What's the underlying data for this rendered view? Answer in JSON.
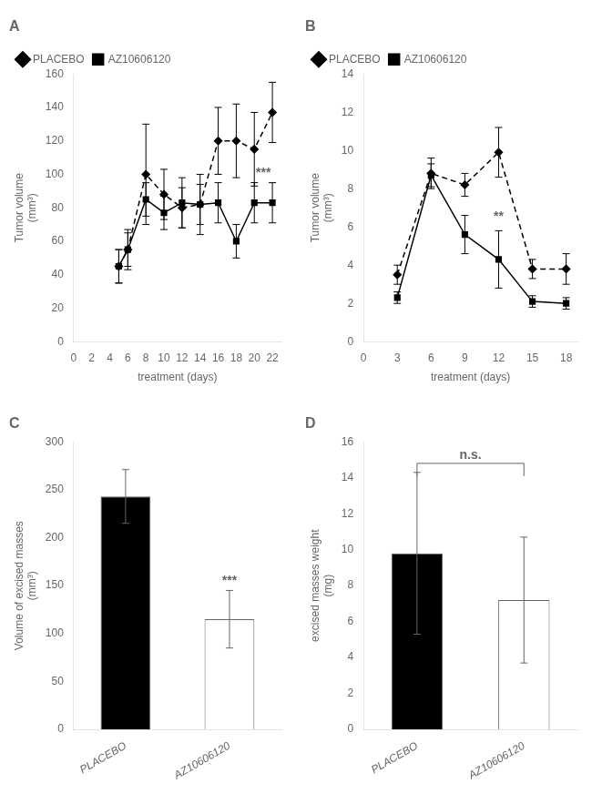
{
  "chart_data": [
    {
      "type": "line",
      "title": "A",
      "xlabel": "treatment (days)",
      "ylabel": "Tumor volume\n(mm³)",
      "x": [
        5,
        6,
        8,
        10,
        12,
        14,
        16,
        18,
        20,
        22
      ],
      "series": [
        {
          "name": "PLACEBO",
          "color": "black",
          "marker": "diamond",
          "line_style": "dashed",
          "values": [
            45,
            55,
            100,
            88,
            80,
            82,
            120,
            120,
            115,
            137
          ],
          "errors": [
            10,
            12,
            30,
            15,
            12,
            18,
            20,
            22,
            22,
            18
          ]
        },
        {
          "name": "AZ10606120",
          "color": "black",
          "marker": "square",
          "line_style": "solid",
          "values": [
            45,
            55,
            85,
            77,
            83,
            82,
            83,
            60,
            83,
            83
          ],
          "errors": [
            10,
            10,
            10,
            10,
            15,
            12,
            12,
            10,
            12,
            12
          ]
        }
      ],
      "xlim": [
        0,
        23
      ],
      "xticks": [
        0,
        2,
        4,
        6,
        8,
        10,
        12,
        14,
        16,
        18,
        20,
        22
      ],
      "ylim": [
        0,
        160
      ],
      "yticks": [
        0,
        20,
        40,
        60,
        80,
        100,
        120,
        140,
        160
      ],
      "legend": "upper left",
      "grid": false,
      "annotations": [
        {
          "text": "***",
          "x": 21,
          "y": 97
        }
      ]
    },
    {
      "type": "line",
      "title": "B",
      "xlabel": "treatment (days)",
      "ylabel": "Tumor volume\n(mm³)",
      "x": [
        3,
        6,
        9,
        12,
        15,
        18
      ],
      "series": [
        {
          "name": "PLACEBO",
          "color": "black",
          "marker": "diamond",
          "line_style": "dashed",
          "values": [
            3.5,
            8.8,
            8.2,
            9.9,
            3.8,
            3.8
          ],
          "errors": [
            0.5,
            0.8,
            0.6,
            1.3,
            0.5,
            0.8
          ]
        },
        {
          "name": "AZ10606120",
          "color": "black",
          "marker": "square",
          "line_style": "solid",
          "values": [
            2.3,
            8.7,
            5.6,
            4.3,
            2.1,
            2.0
          ],
          "errors": [
            0.3,
            0.6,
            1.0,
            1.5,
            0.3,
            0.3
          ]
        }
      ],
      "xlim": [
        0,
        19
      ],
      "xticks": [
        0,
        3,
        6,
        9,
        12,
        15,
        18
      ],
      "ylim": [
        0,
        14
      ],
      "yticks": [
        0,
        2,
        4,
        6,
        8,
        10,
        12,
        14
      ],
      "legend": "upper left",
      "grid": false,
      "annotations": [
        {
          "text": "**",
          "x": 12,
          "y": 6.2
        }
      ]
    },
    {
      "type": "bar",
      "title": "C",
      "ylabel": "Volume of excised masses\n(mm³)",
      "categories": [
        "PLACEBO",
        "AZ10606120"
      ],
      "values": [
        243,
        115
      ],
      "errors": [
        28,
        30
      ],
      "colors": [
        "black",
        "white"
      ],
      "ylim": [
        0,
        300
      ],
      "yticks": [
        0,
        50,
        100,
        150,
        200,
        250,
        300
      ],
      "grid": false,
      "annotations": [
        {
          "text": "***",
          "x": "AZ10606120",
          "y": 148
        }
      ]
    },
    {
      "type": "bar",
      "title": "D",
      "ylabel": "excised masses weight\n(mg)",
      "categories": [
        "PLACEBO",
        "AZ10606120"
      ],
      "values": [
        9.8,
        7.2
      ],
      "errors": [
        4.5,
        3.5
      ],
      "colors": [
        "black",
        "white"
      ],
      "ylim": [
        0,
        16
      ],
      "yticks": [
        0,
        2,
        4,
        6,
        8,
        10,
        12,
        14,
        16
      ],
      "grid": false,
      "annotations": [
        {
          "text": "n.s.",
          "x": [
            "PLACEBO",
            "AZ10606120"
          ],
          "y": 14.8
        }
      ]
    }
  ]
}
